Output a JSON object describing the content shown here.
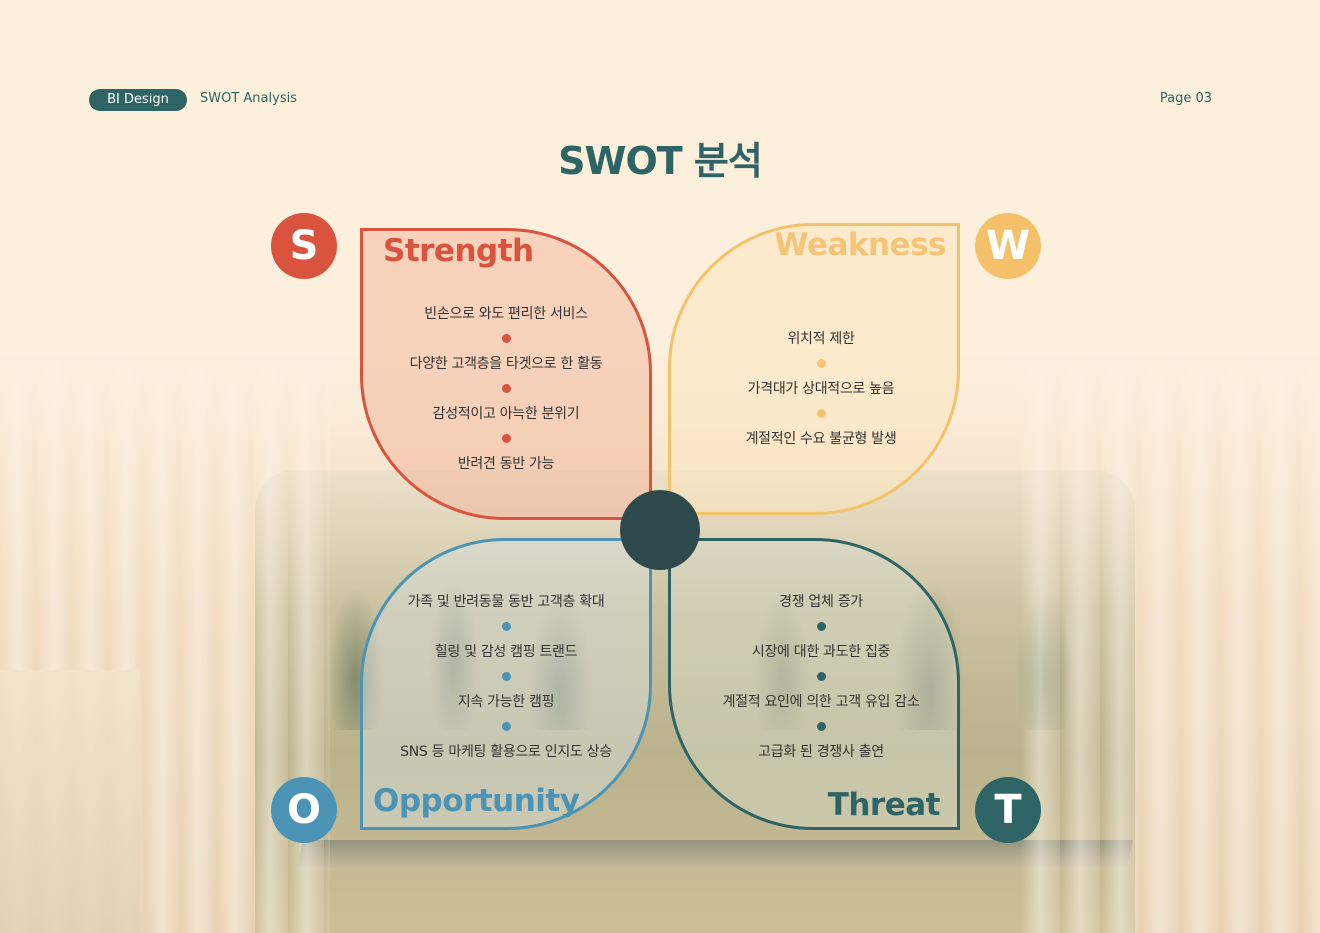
{
  "header": {
    "pill_label": "BI Design",
    "section_label": "SWOT Analysis",
    "page_label": "Page 03",
    "title": "SWOT 분석"
  },
  "colors": {
    "strength": "#d9533e",
    "weakness": "#f4c06a",
    "opportunity": "#4b94b6",
    "threat": "#2f6466",
    "center": "#2f4a4c"
  },
  "strength": {
    "letter": "S",
    "heading": "Strength",
    "items": [
      "빈손으로 와도 편리한 서비스",
      "다양한  고객층을 타겟으로 한 활동",
      "감성적이고  아늑한 분위기",
      "반려견 동반 가능"
    ]
  },
  "weakness": {
    "letter": "W",
    "heading": "Weakness",
    "items": [
      "위치적 제한",
      "가격대가 상대적으로 높음",
      "계절적인 수요 불균형 발생"
    ]
  },
  "opportunity": {
    "letter": "O",
    "heading": "Opportunity",
    "items": [
      "가족 및 반려동물 동반 고객층 확대",
      "힐링 및 감성 캠핑 트랜드",
      "지속 가능한 캠핑",
      "SNS 등 마케팅 활용으로 인지도 상승"
    ]
  },
  "threat": {
    "letter": "T",
    "heading": "Threat",
    "items": [
      "경쟁 업체 증가",
      "시장에 대한 과도한 집중",
      "계절적 요인에 의한 고객 유입 감소",
      "고급화 된 경쟁사 출연"
    ]
  }
}
